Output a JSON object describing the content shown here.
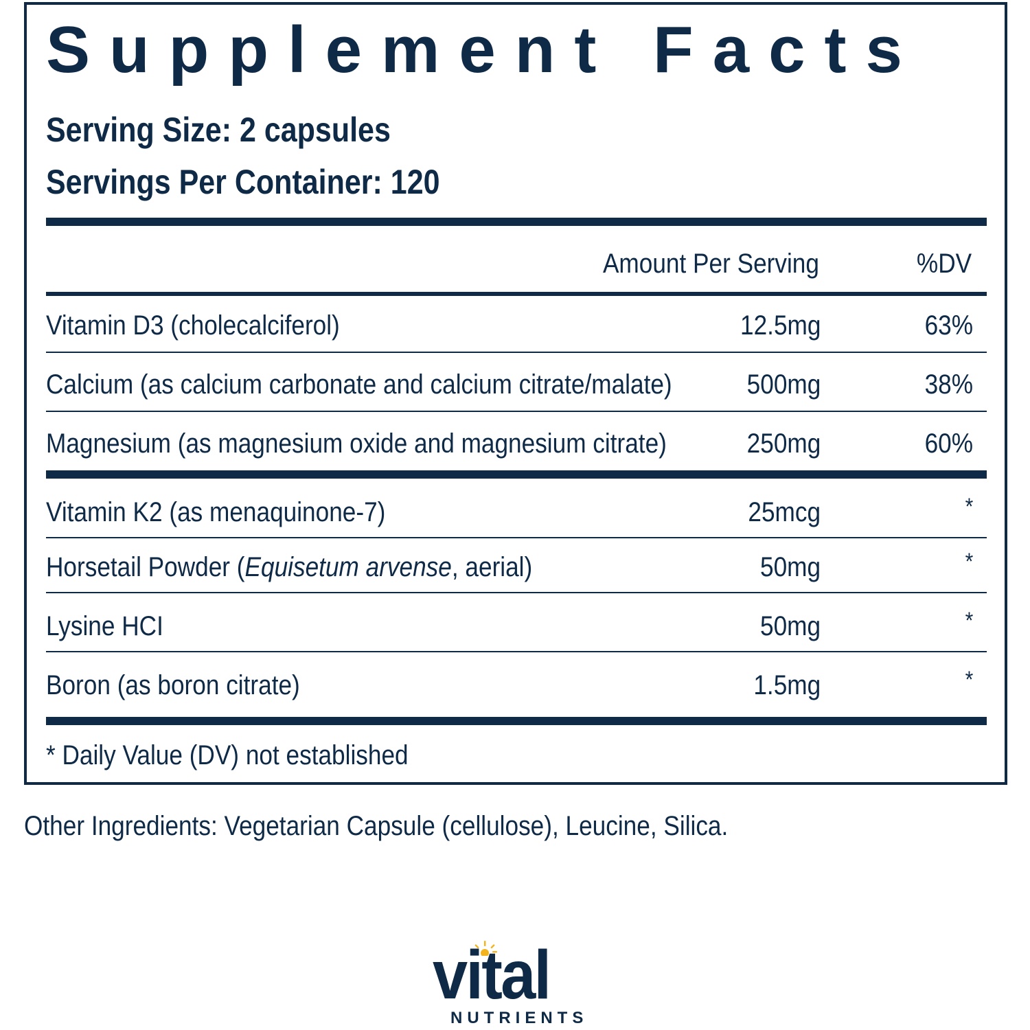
{
  "panel": {
    "title": "Supplement Facts",
    "serving_size": "Serving Size: 2 capsules",
    "servings_per_container": "Servings Per Container: 120",
    "header_amount": "Amount Per Serving",
    "header_dv": "%DV",
    "rows": [
      {
        "name": "Vitamin D3 (cholecalciferol)",
        "amount": "12.5mg",
        "dv": "63%"
      },
      {
        "name": "Calcium (as calcium carbonate and calcium citrate/malate)",
        "amount": "500mg",
        "dv": "38%"
      },
      {
        "name": "Magnesium (as magnesium oxide and magnesium citrate)",
        "amount": "250mg",
        "dv": "60%"
      },
      {
        "name": "Vitamin K2 (as menaquinone-7)",
        "amount": "25mcg",
        "dv": "*"
      },
      {
        "name_prefix": "Horsetail Powder (",
        "name_latin": "Equisetum arvense",
        "name_suffix": ", aerial)",
        "amount": "50mg",
        "dv": "*"
      },
      {
        "name": "Lysine HCI",
        "amount": "50mg",
        "dv": "*"
      },
      {
        "name": "Boron (as boron citrate)",
        "amount": "1.5mg",
        "dv": "*"
      }
    ],
    "footnote": "* Daily Value (DV) not established"
  },
  "other_ingredients": "Other Ingredients: Vegetarian Capsule (cellulose), Leucine, Silica.",
  "brand": {
    "word": "vital",
    "sub": "NUTRIENTS",
    "icon": "sun-icon",
    "primary_color": "#0e2a47",
    "accent_color": "#f2b31c"
  }
}
